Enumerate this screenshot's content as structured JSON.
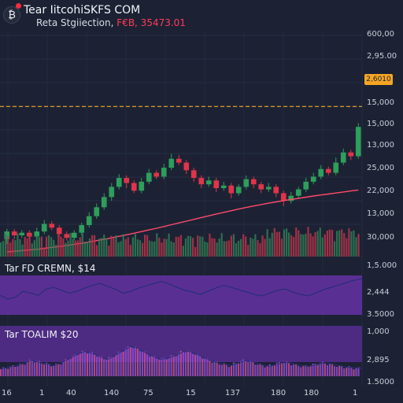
{
  "header": {
    "logo_icon": "bitcoin-icon",
    "title": "Tear IitcohiSKFS COM",
    "subtitle_label": "Reta Stgiiection,",
    "subtitle_value": "F€B, 35473.01"
  },
  "colors": {
    "background": "#1c2234",
    "bull": "#2e9e5b",
    "bear": "#e0344a",
    "ma_line": "#ff4a6b",
    "dashed_level": "#f5a623",
    "oscillator_fill": "#5a2f93",
    "oscillator_line": "#2a2f7a"
  },
  "price_axis_labels": [
    "600,00",
    "2,95.00",
    "15,000",
    "15,000",
    "13,000",
    "25,000",
    "22,000",
    "13,000",
    "30,000"
  ],
  "price_tag": "2,6010",
  "pane1": {
    "title": "Tar FD CREMN, $14",
    "axis_labels": [
      "1,5.000",
      "2,444",
      "3.5000"
    ]
  },
  "pane2": {
    "title": "Tar TOALIM $20",
    "axis_labels": [
      "1,000",
      "2,895",
      "1.5000"
    ]
  },
  "x_axis_labels": [
    "16",
    "1",
    "40",
    "140",
    "75",
    "15",
    "137",
    "180",
    "180",
    "1"
  ],
  "chart_data": {
    "type": "candlestick",
    "candles": [
      {
        "o": 30,
        "c": 36,
        "h": 38,
        "l": 26
      },
      {
        "o": 36,
        "c": 33,
        "h": 38,
        "l": 30
      },
      {
        "o": 33,
        "c": 35,
        "h": 37,
        "l": 31
      },
      {
        "o": 35,
        "c": 32,
        "h": 37,
        "l": 30
      },
      {
        "o": 32,
        "c": 36,
        "h": 39,
        "l": 30
      },
      {
        "o": 36,
        "c": 42,
        "h": 45,
        "l": 34
      },
      {
        "o": 42,
        "c": 39,
        "h": 44,
        "l": 37
      },
      {
        "o": 39,
        "c": 34,
        "h": 41,
        "l": 32
      },
      {
        "o": 34,
        "c": 31,
        "h": 36,
        "l": 29
      },
      {
        "o": 31,
        "c": 35,
        "h": 37,
        "l": 29
      },
      {
        "o": 35,
        "c": 41,
        "h": 43,
        "l": 33
      },
      {
        "o": 41,
        "c": 48,
        "h": 51,
        "l": 39
      },
      {
        "o": 48,
        "c": 55,
        "h": 58,
        "l": 46
      },
      {
        "o": 55,
        "c": 63,
        "h": 66,
        "l": 53
      },
      {
        "o": 63,
        "c": 71,
        "h": 74,
        "l": 60
      },
      {
        "o": 71,
        "c": 78,
        "h": 81,
        "l": 69
      },
      {
        "o": 78,
        "c": 74,
        "h": 80,
        "l": 70
      },
      {
        "o": 74,
        "c": 68,
        "h": 76,
        "l": 66
      },
      {
        "o": 68,
        "c": 75,
        "h": 78,
        "l": 66
      },
      {
        "o": 75,
        "c": 82,
        "h": 85,
        "l": 73
      },
      {
        "o": 82,
        "c": 79,
        "h": 84,
        "l": 77
      },
      {
        "o": 79,
        "c": 86,
        "h": 89,
        "l": 77
      },
      {
        "o": 86,
        "c": 93,
        "h": 97,
        "l": 84
      },
      {
        "o": 93,
        "c": 90,
        "h": 96,
        "l": 88
      },
      {
        "o": 90,
        "c": 84,
        "h": 92,
        "l": 81
      },
      {
        "o": 84,
        "c": 78,
        "h": 86,
        "l": 75
      },
      {
        "o": 78,
        "c": 73,
        "h": 80,
        "l": 70
      },
      {
        "o": 73,
        "c": 76,
        "h": 79,
        "l": 71
      },
      {
        "o": 76,
        "c": 70,
        "h": 78,
        "l": 67
      },
      {
        "o": 70,
        "c": 72,
        "h": 75,
        "l": 68
      },
      {
        "o": 72,
        "c": 66,
        "h": 74,
        "l": 62
      },
      {
        "o": 66,
        "c": 71,
        "h": 73,
        "l": 64
      },
      {
        "o": 71,
        "c": 77,
        "h": 80,
        "l": 69
      },
      {
        "o": 77,
        "c": 73,
        "h": 79,
        "l": 70
      },
      {
        "o": 73,
        "c": 69,
        "h": 75,
        "l": 66
      },
      {
        "o": 69,
        "c": 71,
        "h": 74,
        "l": 67
      },
      {
        "o": 71,
        "c": 66,
        "h": 73,
        "l": 63
      },
      {
        "o": 66,
        "c": 60,
        "h": 68,
        "l": 56
      },
      {
        "o": 60,
        "c": 64,
        "h": 67,
        "l": 58
      },
      {
        "o": 64,
        "c": 69,
        "h": 71,
        "l": 62
      },
      {
        "o": 69,
        "c": 75,
        "h": 78,
        "l": 67
      },
      {
        "o": 75,
        "c": 79,
        "h": 82,
        "l": 73
      },
      {
        "o": 79,
        "c": 85,
        "h": 88,
        "l": 77
      },
      {
        "o": 85,
        "c": 82,
        "h": 87,
        "l": 80
      },
      {
        "o": 82,
        "c": 90,
        "h": 94,
        "l": 80
      },
      {
        "o": 90,
        "c": 98,
        "h": 101,
        "l": 88
      },
      {
        "o": 98,
        "c": 95,
        "h": 100,
        "l": 92
      },
      {
        "o": 95,
        "c": 118,
        "h": 121,
        "l": 93
      }
    ],
    "moving_average": [
      20,
      20.5,
      21,
      21.5,
      22,
      22.8,
      23.5,
      24.2,
      25,
      25.9,
      26.8,
      27.8,
      28.8,
      29.9,
      31,
      32.2,
      33.4,
      34.6,
      35.9,
      37.2,
      38.5,
      39.9,
      41.3,
      42.7,
      44.1,
      45.5,
      46.9,
      48.3,
      49.7,
      51,
      52.3,
      53.6,
      54.8,
      56,
      57.1,
      58.2,
      59.2,
      60.2,
      61.1,
      62,
      62.9,
      63.8,
      64.6,
      65.4,
      66.2,
      67,
      67.8,
      68.5
    ],
    "dashed_level": 134,
    "oscillator1": [
      50,
      40,
      45,
      60,
      55,
      50,
      65,
      70,
      62,
      55,
      60,
      68,
      75,
      80,
      72,
      65,
      55,
      60,
      68,
      74,
      80,
      85,
      78,
      70,
      62,
      58,
      52,
      60,
      68,
      75,
      70,
      64,
      58,
      52,
      48,
      55,
      62,
      66,
      58,
      52,
      48,
      56,
      64,
      70,
      76,
      82,
      88,
      92
    ],
    "oscillator2": [
      20,
      25,
      30,
      35,
      45,
      40,
      35,
      30,
      38,
      50,
      62,
      70,
      65,
      55,
      48,
      60,
      72,
      85,
      78,
      65,
      55,
      48,
      52,
      60,
      72,
      68,
      58,
      48,
      40,
      35,
      30,
      38,
      45,
      40,
      32,
      28,
      34,
      40,
      36,
      30,
      28,
      32,
      38,
      35,
      30,
      26,
      24,
      22
    ]
  }
}
